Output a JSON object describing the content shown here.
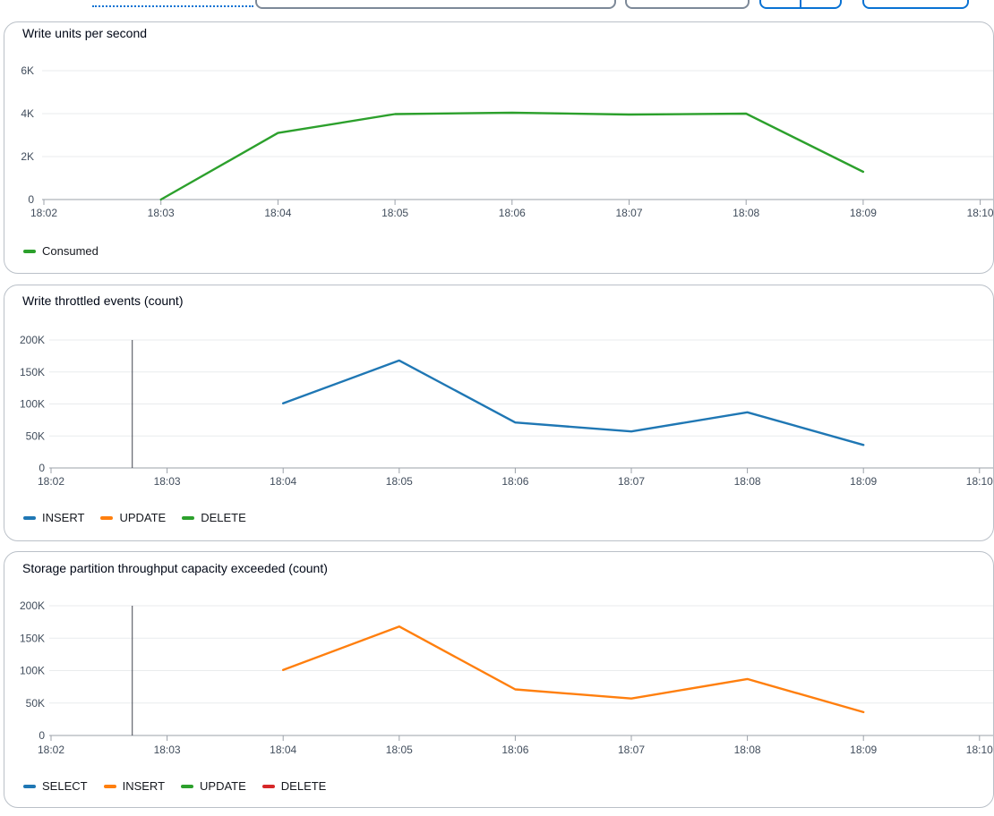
{
  "colors": {
    "accent": "#0972d3",
    "input_border": "#7d8998",
    "panel_border": "#bac0c8",
    "grid_line": "#e9ebed",
    "axis_line": "#9ba1a9",
    "tick_label": "#414d5c",
    "title_text": "#000716",
    "legend_text": "#16191f",
    "annotation_line": "#424650",
    "series_blue": "#1f77b4",
    "series_orange": "#ff7f0e",
    "series_green": "#2ca02c",
    "series_red": "#d62728"
  },
  "chart_data": [
    {
      "type": "line",
      "title": "Write units per second",
      "xlabel": "",
      "ylabel": "",
      "grid": "horizontal",
      "legend_position": "bottom",
      "x_ticks": [
        {
          "minute": 2,
          "label": "18:02"
        },
        {
          "minute": 3,
          "label": "18:03"
        },
        {
          "minute": 4,
          "label": "18:04"
        },
        {
          "minute": 5,
          "label": "18:05"
        },
        {
          "minute": 6,
          "label": "18:06"
        },
        {
          "minute": 7,
          "label": "18:07"
        },
        {
          "minute": 8,
          "label": "18:08"
        },
        {
          "minute": 9,
          "label": "18:09"
        },
        {
          "minute": 10,
          "label": "18:10"
        }
      ],
      "y_ticks": [
        {
          "value": 0,
          "label": "0"
        },
        {
          "value": 2000,
          "label": "2K"
        },
        {
          "value": 4000,
          "label": "4K"
        },
        {
          "value": 6000,
          "label": "6K"
        }
      ],
      "ylim": [
        0,
        6000
      ],
      "series": [
        {
          "name": "Consumed",
          "color": "#2ca02c",
          "points": [
            [
              3,
              0
            ],
            [
              4,
              3100
            ],
            [
              5,
              3980
            ],
            [
              6,
              4040
            ],
            [
              7,
              3960
            ],
            [
              8,
              4000
            ],
            [
              9,
              1290
            ]
          ]
        }
      ]
    },
    {
      "type": "line",
      "title": "Write throttled events (count)",
      "xlabel": "",
      "ylabel": "",
      "grid": "horizontal",
      "legend_position": "bottom",
      "x_ticks": [
        {
          "minute": 2,
          "label": "18:02"
        },
        {
          "minute": 3,
          "label": "18:03"
        },
        {
          "minute": 4,
          "label": "18:04"
        },
        {
          "minute": 5,
          "label": "18:05"
        },
        {
          "minute": 6,
          "label": "18:06"
        },
        {
          "minute": 7,
          "label": "18:07"
        },
        {
          "minute": 8,
          "label": "18:08"
        },
        {
          "minute": 9,
          "label": "18:09"
        },
        {
          "minute": 10,
          "label": "18:10"
        }
      ],
      "y_ticks": [
        {
          "value": 0,
          "label": "0"
        },
        {
          "value": 50000,
          "label": "50K"
        },
        {
          "value": 100000,
          "label": "100K"
        },
        {
          "value": 150000,
          "label": "150K"
        },
        {
          "value": 200000,
          "label": "200K"
        }
      ],
      "ylim": [
        0,
        200000
      ],
      "annotation": {
        "x_minute": 2.7
      },
      "series": [
        {
          "name": "INSERT",
          "color": "#1f77b4",
          "points": [
            [
              4,
              101000
            ],
            [
              5,
              168000
            ],
            [
              6,
              71000
            ],
            [
              7,
              57000
            ],
            [
              8,
              87000
            ],
            [
              9,
              36000
            ]
          ]
        },
        {
          "name": "UPDATE",
          "color": "#ff7f0e",
          "points": []
        },
        {
          "name": "DELETE",
          "color": "#2ca02c",
          "points": []
        }
      ]
    },
    {
      "type": "line",
      "title": "Storage partition throughput capacity exceeded (count)",
      "xlabel": "",
      "ylabel": "",
      "grid": "horizontal",
      "legend_position": "bottom",
      "x_ticks": [
        {
          "minute": 2,
          "label": "18:02"
        },
        {
          "minute": 3,
          "label": "18:03"
        },
        {
          "minute": 4,
          "label": "18:04"
        },
        {
          "minute": 5,
          "label": "18:05"
        },
        {
          "minute": 6,
          "label": "18:06"
        },
        {
          "minute": 7,
          "label": "18:07"
        },
        {
          "minute": 8,
          "label": "18:08"
        },
        {
          "minute": 9,
          "label": "18:09"
        },
        {
          "minute": 10,
          "label": "18:10"
        }
      ],
      "y_ticks": [
        {
          "value": 0,
          "label": "0"
        },
        {
          "value": 50000,
          "label": "50K"
        },
        {
          "value": 100000,
          "label": "100K"
        },
        {
          "value": 150000,
          "label": "150K"
        },
        {
          "value": 200000,
          "label": "200K"
        }
      ],
      "ylim": [
        0,
        200000
      ],
      "annotation": {
        "x_minute": 2.7
      },
      "series": [
        {
          "name": "SELECT",
          "color": "#1f77b4",
          "points": []
        },
        {
          "name": "INSERT",
          "color": "#ff7f0e",
          "points": [
            [
              4,
              101000
            ],
            [
              5,
              168000
            ],
            [
              6,
              71000
            ],
            [
              7,
              57000
            ],
            [
              8,
              87000
            ],
            [
              9,
              36000
            ]
          ]
        },
        {
          "name": "UPDATE",
          "color": "#2ca02c",
          "points": []
        },
        {
          "name": "DELETE",
          "color": "#d62728",
          "points": []
        }
      ]
    }
  ]
}
